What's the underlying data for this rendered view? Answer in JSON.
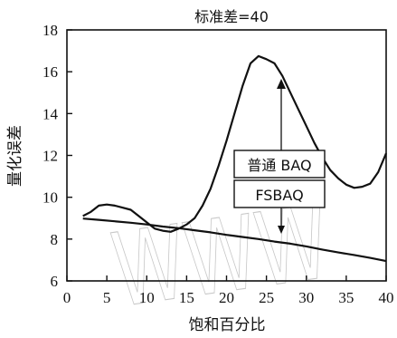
{
  "chart_data": {
    "type": "line",
    "title": "标准差=40",
    "xlabel": "饱和百分比",
    "ylabel": "量化误差",
    "xlim": [
      0,
      40
    ],
    "ylim": [
      6,
      18
    ],
    "xticks": [
      "0",
      "5",
      "10",
      "15",
      "20",
      "25",
      "30",
      "35",
      "40"
    ],
    "yticks": [
      "6",
      "8",
      "10",
      "12",
      "14",
      "16",
      "18"
    ],
    "grid": false,
    "legend_placement": "center-right, labels with arrows",
    "series": [
      {
        "name": "普通 BAQ",
        "x": [
          2,
          3,
          4,
          5,
          6,
          7,
          8,
          9,
          10,
          11,
          12,
          13,
          14,
          15,
          16,
          17,
          18,
          19,
          20,
          21,
          22,
          23,
          24,
          25,
          26,
          27,
          28,
          29,
          30,
          31,
          32,
          33,
          34,
          35,
          36,
          37,
          38,
          39,
          40
        ],
        "values": [
          9.1,
          9.3,
          9.6,
          9.65,
          9.6,
          9.5,
          9.4,
          9.1,
          8.8,
          8.5,
          8.4,
          8.35,
          8.5,
          8.7,
          9.0,
          9.6,
          10.4,
          11.5,
          12.7,
          14.0,
          15.3,
          16.4,
          16.75,
          16.6,
          16.4,
          15.8,
          15.0,
          14.2,
          13.4,
          12.6,
          11.9,
          11.3,
          10.9,
          10.6,
          10.45,
          10.5,
          10.65,
          11.2,
          12.1
        ]
      },
      {
        "name": "FSBAQ",
        "x": [
          2,
          4,
          6,
          8,
          10,
          12,
          14,
          16,
          18,
          20,
          22,
          24,
          26,
          28,
          30,
          32,
          34,
          36,
          38,
          40
        ],
        "values": [
          8.98,
          8.92,
          8.85,
          8.78,
          8.7,
          8.6,
          8.52,
          8.42,
          8.32,
          8.2,
          8.1,
          8.0,
          7.88,
          7.78,
          7.65,
          7.5,
          7.36,
          7.24,
          7.1,
          6.95
        ]
      }
    ]
  },
  "watermark": "WWW"
}
